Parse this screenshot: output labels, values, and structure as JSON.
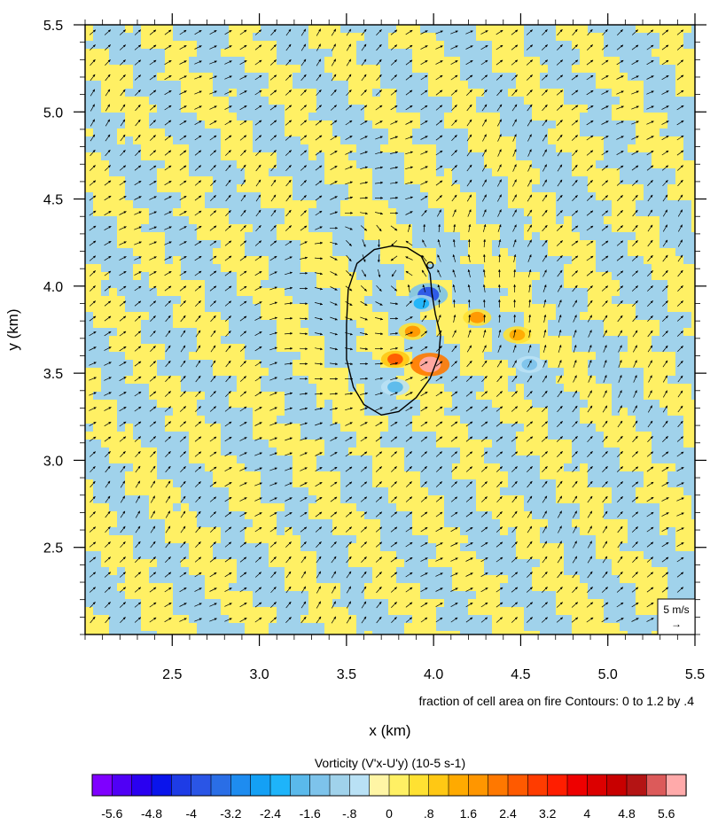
{
  "chart_data": {
    "type": "heatmap",
    "overlay": [
      "vector-field",
      "contour"
    ],
    "xlabel": "x (km)",
    "ylabel": "y (km)",
    "xlim": [
      2.0,
      5.5
    ],
    "ylim": [
      2.0,
      5.5
    ],
    "x_ticks": [
      "2.5",
      "3.0",
      "3.5",
      "4.0",
      "4.5",
      "5.0",
      "5.5"
    ],
    "y_ticks": [
      "2.5",
      "3.0",
      "3.5",
      "4.0",
      "4.5",
      "5.0",
      "5.5"
    ],
    "contour_info": "fraction of cell area on fire Contours: 0 to 1.2 by .4",
    "reference_vector": {
      "label": "5 m/s",
      "symbol": "→"
    },
    "colorbar": {
      "title": "Vorticity (V'x-U'y)  (10-5 s-1)",
      "labels": [
        "-5.6",
        "-4.8",
        "-4",
        "-3.2",
        "-2.4",
        "-1.6",
        "-.8",
        "0",
        ".8",
        "1.6",
        "2.4",
        "3.2",
        "4",
        "4.8",
        "5.6"
      ],
      "colors": [
        "#7f00ff",
        "#5000f5",
        "#2a00f0",
        "#0a14eb",
        "#1e3ce6",
        "#2a55e6",
        "#2a6ee6",
        "#1e8cf0",
        "#14a0f5",
        "#1eb4fa",
        "#5ab9eb",
        "#7dc3eb",
        "#a0d2eb",
        "#b9e1f5",
        "#fff5a5",
        "#fff064",
        "#ffe132",
        "#ffc814",
        "#ffaa00",
        "#ff9600",
        "#ff7800",
        "#ff5a00",
        "#ff3c00",
        "#ff1e00",
        "#ee0000",
        "#dc0000",
        "#c80000",
        "#b41414",
        "#dc5a5a",
        "#ffaaaa"
      ]
    },
    "vorticity_features": [
      {
        "x": 3.97,
        "y": 3.95,
        "value": -4.0
      },
      {
        "x": 3.93,
        "y": 3.9,
        "value": -2.4
      },
      {
        "x": 3.78,
        "y": 3.42,
        "value": -2.0
      },
      {
        "x": 3.98,
        "y": 3.55,
        "value": 5.6
      },
      {
        "x": 3.78,
        "y": 3.58,
        "value": 2.4
      },
      {
        "x": 3.88,
        "y": 3.74,
        "value": 1.6
      },
      {
        "x": 4.25,
        "y": 3.82,
        "value": 1.6
      },
      {
        "x": 4.55,
        "y": 3.55,
        "value": -1.6
      },
      {
        "x": 4.48,
        "y": 3.72,
        "value": 1.2
      }
    ],
    "vortex_center": {
      "x": 3.98,
      "y": 3.75
    },
    "fire_contour": [
      [
        3.76,
        4.23
      ],
      [
        3.66,
        4.21
      ],
      [
        3.56,
        4.13
      ],
      [
        3.51,
        3.98
      ],
      [
        3.5,
        3.78
      ],
      [
        3.5,
        3.58
      ],
      [
        3.54,
        3.42
      ],
      [
        3.6,
        3.32
      ],
      [
        3.7,
        3.26
      ],
      [
        3.8,
        3.28
      ],
      [
        3.9,
        3.36
      ],
      [
        3.98,
        3.47
      ],
      [
        4.03,
        3.6
      ],
      [
        4.04,
        3.72
      ],
      [
        4.01,
        3.84
      ],
      [
        3.99,
        3.96
      ],
      [
        3.98,
        4.07
      ],
      [
        3.93,
        4.17
      ],
      [
        3.85,
        4.22
      ],
      [
        3.76,
        4.23
      ]
    ]
  }
}
